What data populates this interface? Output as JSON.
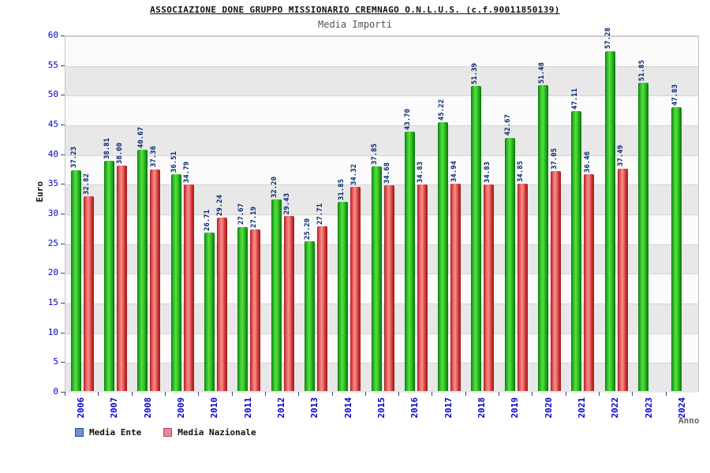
{
  "header": {
    "title": "ASSOCIAZIONE DONE GRUPPO MISSIONARIO CREMNAGO O.N.L.U.S. (c.f.90011850139)",
    "subtitle": "Media Importi"
  },
  "axes": {
    "y_label": "Euro",
    "x_label": "Anno"
  },
  "legend": [
    {
      "label": "Media Ente",
      "color": "#6f8fc8",
      "border": "#31479e"
    },
    {
      "label": "Media Nazionale",
      "color": "#e4889a",
      "border": "#b04a60"
    }
  ],
  "chart_data": {
    "type": "bar",
    "title": "ASSOCIAZIONE DONE GRUPPO MISSIONARIO CREMNAGO O.N.L.U.S. (c.f.90011850139)",
    "subtitle": "Media Importi",
    "xlabel": "Anno",
    "ylabel": "Euro",
    "ylim": [
      0,
      60
    ],
    "yticks": [
      0,
      5,
      10,
      15,
      20,
      25,
      30,
      35,
      40,
      45,
      50,
      55,
      60
    ],
    "grid": true,
    "legend_position": "bottom-left",
    "categories": [
      "2006",
      "2007",
      "2008",
      "2009",
      "2010",
      "2011",
      "2012",
      "2013",
      "2014",
      "2015",
      "2016",
      "2017",
      "2018",
      "2019",
      "2020",
      "2021",
      "2022",
      "2023",
      "2024"
    ],
    "series": [
      {
        "name": "Media Ente",
        "bar_color": "green",
        "values": [
          37.23,
          38.81,
          40.67,
          36.51,
          26.71,
          27.67,
          32.2,
          25.2,
          31.85,
          37.85,
          43.7,
          45.22,
          51.39,
          42.67,
          51.48,
          47.11,
          57.28,
          51.85,
          47.83
        ]
      },
      {
        "name": "Media Nazionale",
        "bar_color": "red",
        "values": [
          32.82,
          38.0,
          37.36,
          34.79,
          29.24,
          27.19,
          29.43,
          27.71,
          34.32,
          34.68,
          34.83,
          34.94,
          34.83,
          34.85,
          37.05,
          36.46,
          37.49,
          null,
          null
        ]
      }
    ]
  }
}
